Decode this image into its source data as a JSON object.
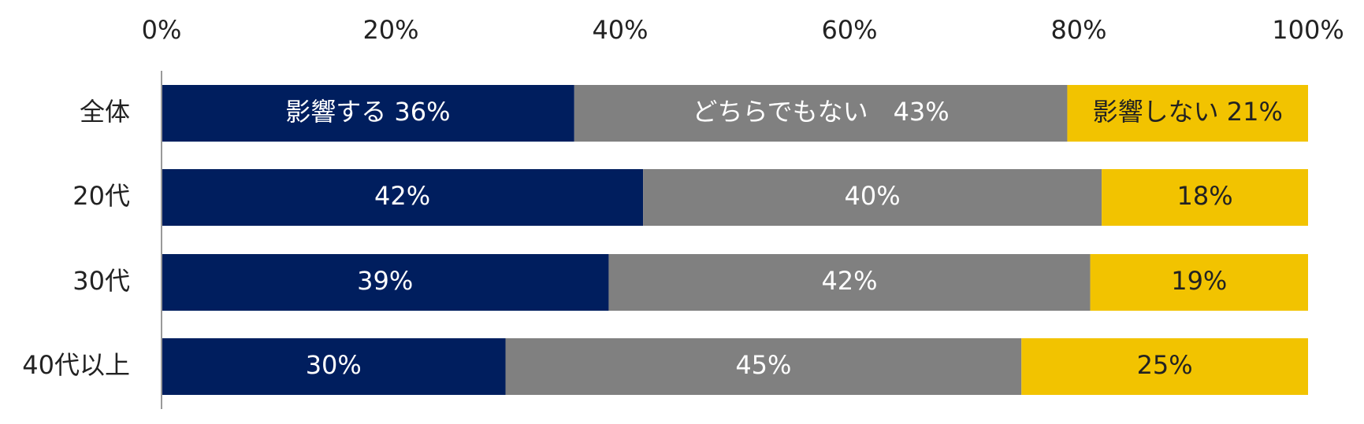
{
  "chart_data": {
    "type": "bar",
    "orientation": "horizontal",
    "stacked": true,
    "categories": [
      "全体",
      "20代",
      "30代",
      "40代以上"
    ],
    "x_ticks": [
      "0%",
      "20%",
      "40%",
      "60%",
      "80%",
      "100%"
    ],
    "xlim": [
      0,
      100
    ],
    "x_axis_position": "top",
    "grid": false,
    "legend": "none",
    "series": [
      {
        "name": "影響する",
        "values": [
          36,
          42,
          39,
          30
        ],
        "color": "#001E5E",
        "label_color": "#FFFFFF",
        "labels": [
          "影響する  36%",
          "42%",
          "39%",
          "30%"
        ]
      },
      {
        "name": "どちらでもない",
        "values": [
          43,
          40,
          42,
          45
        ],
        "color": "#808080",
        "label_color": "#FFFFFF",
        "labels": [
          "どちらでもない　43%",
          "40%",
          "42%",
          "45%"
        ]
      },
      {
        "name": "影響しない",
        "values": [
          21,
          18,
          19,
          25
        ],
        "color": "#F2C300",
        "label_color": "#222222",
        "labels": [
          "影響しない 21%",
          "18%",
          "19%",
          "25%"
        ]
      }
    ]
  }
}
